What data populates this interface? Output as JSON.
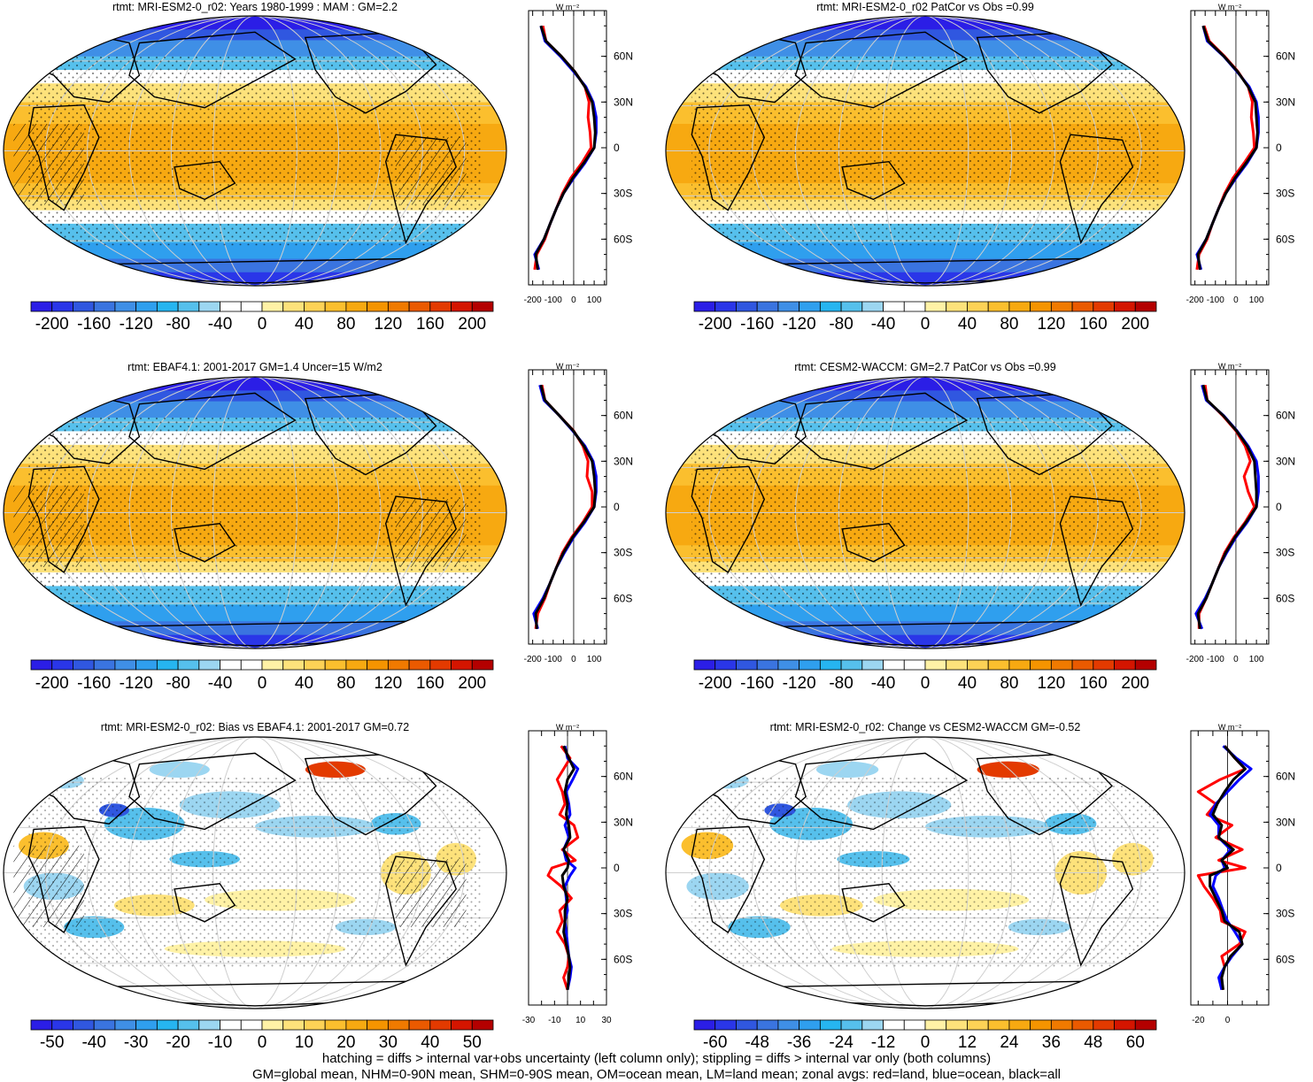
{
  "colors": {
    "land": "#ff0000",
    "ocean": "#0000ff",
    "all": "#000000",
    "palette": [
      "#2b1ee6",
      "#2a36e8",
      "#3057e0",
      "#3a74e0",
      "#3f8fe6",
      "#2f9fee",
      "#26b5f0",
      "#56c0ec",
      "#9cd6f1",
      "#ffffff",
      "#ffffff",
      "#fff2a6",
      "#fde27b",
      "#fdd256",
      "#fbbf2e",
      "#f7a911",
      "#f59400",
      "#f07a00",
      "#ea5a00",
      "#e33a00",
      "#d41500",
      "#b40000"
    ]
  },
  "panels": [
    {
      "id": "p1",
      "title": "rtmt: MRI-ESM2-0_r02: Years 1980-1999 : MAM : GM=2.2",
      "colorbar_labels": [
        "-200",
        "-160",
        "-120",
        "-80",
        "-40",
        "0",
        "40",
        "80",
        "120",
        "160",
        "200"
      ],
      "zonal_unit": "W m⁻²",
      "zonal_xticks": [
        "-200",
        "-100",
        "0",
        "100"
      ],
      "zonal_yticks": [
        "60N",
        "30N",
        "0",
        "30S",
        "60S"
      ],
      "map": {
        "kind": "mean",
        "hatch": true
      },
      "chart_data": {
        "type": "line",
        "xlabel": "W m-2",
        "x_range": [
          -220,
          160
        ],
        "y": [
          80,
          70,
          60,
          50,
          40,
          30,
          20,
          10,
          0,
          -10,
          -20,
          -30,
          -40,
          -50,
          -60,
          -70,
          -80
        ],
        "series": [
          {
            "values": [
              -150,
              -135,
              -60,
              5,
              55,
              75,
              70,
              80,
              85,
              40,
              -15,
              -55,
              -85,
              -115,
              -140,
              -180,
              -190
            ]
          },
          {
            "values": [
              -160,
              -140,
              -65,
              0,
              60,
              95,
              110,
              110,
              100,
              55,
              0,
              -50,
              -85,
              -115,
              -145,
              -190,
              -170
            ]
          },
          {
            "values": [
              -160,
              -135,
              -60,
              5,
              55,
              90,
              100,
              105,
              100,
              50,
              -5,
              -50,
              -85,
              -115,
              -145,
              -185,
              -175
            ]
          }
        ]
      }
    },
    {
      "id": "p2",
      "title": "rtmt: MRI-ESM2-0_r02 PatCor vs Obs =0.99",
      "colorbar_labels": [
        "-200",
        "-160",
        "-120",
        "-80",
        "-40",
        "0",
        "40",
        "80",
        "120",
        "160",
        "200"
      ],
      "zonal_unit": "W m⁻²",
      "zonal_xticks": [
        "-200",
        "-100",
        "0",
        "100"
      ],
      "zonal_yticks": [
        "60N",
        "30N",
        "0",
        "30S",
        "60S"
      ],
      "map": {
        "kind": "mean",
        "hatch": false
      },
      "chart_data": {
        "type": "line",
        "xlabel": "W m-2",
        "x_range": [
          -220,
          160
        ],
        "y": [
          80,
          70,
          60,
          50,
          40,
          30,
          20,
          10,
          0,
          -10,
          -20,
          -30,
          -40,
          -50,
          -60,
          -70,
          -80
        ],
        "series": [
          {
            "values": [
              -155,
              -130,
              -55,
              10,
              60,
              80,
              75,
              85,
              90,
              40,
              -15,
              -55,
              -85,
              -115,
              -140,
              -180,
              -190
            ]
          },
          {
            "values": [
              -160,
              -140,
              -60,
              5,
              65,
              100,
              110,
              110,
              100,
              55,
              0,
              -50,
              -85,
              -115,
              -145,
              -190,
              -170
            ]
          },
          {
            "values": [
              -160,
              -135,
              -58,
              8,
              60,
              95,
              100,
              105,
              100,
              50,
              -5,
              -50,
              -85,
              -115,
              -145,
              -185,
              -175
            ]
          }
        ]
      }
    },
    {
      "id": "p3",
      "title": "rtmt: EBAF4.1: 2001-2017 GM=1.4 Uncer=15 W/m2",
      "colorbar_labels": [
        "-200",
        "-160",
        "-120",
        "-80",
        "-40",
        "0",
        "40",
        "80",
        "120",
        "160",
        "200"
      ],
      "zonal_unit": "W m⁻²",
      "zonal_xticks": [
        "-200",
        "-100",
        "0",
        "100"
      ],
      "zonal_yticks": [
        "60N",
        "30N",
        "0",
        "30S",
        "60S"
      ],
      "map": {
        "kind": "mean",
        "hatch": true
      },
      "chart_data": {
        "type": "line",
        "xlabel": "W m-2",
        "x_range": [
          -220,
          160
        ],
        "y": [
          80,
          70,
          60,
          50,
          40,
          30,
          20,
          10,
          0,
          -10,
          -20,
          -30,
          -40,
          -50,
          -60,
          -70,
          -80
        ],
        "series": [
          {
            "values": [
              -155,
              -140,
              -70,
              0,
              45,
              70,
              65,
              90,
              90,
              45,
              -10,
              -55,
              -85,
              -115,
              -140,
              -175,
              -185
            ]
          },
          {
            "values": [
              -165,
              -145,
              -70,
              -5,
              55,
              95,
              110,
              110,
              100,
              55,
              0,
              -45,
              -85,
              -115,
              -150,
              -195,
              -175
            ]
          },
          {
            "values": [
              -160,
              -140,
              -70,
              -2,
              50,
              90,
              100,
              105,
              100,
              50,
              -5,
              -50,
              -85,
              -115,
              -145,
              -185,
              -180
            ]
          }
        ]
      }
    },
    {
      "id": "p4",
      "title": "rtmt: CESM2-WACCM: GM=2.7 PatCor vs Obs =0.99",
      "colorbar_labels": [
        "-200",
        "-160",
        "-120",
        "-80",
        "-40",
        "0",
        "40",
        "80",
        "120",
        "160",
        "200"
      ],
      "zonal_unit": "W m⁻²",
      "zonal_xticks": [
        "-200",
        "-100",
        "0",
        "100"
      ],
      "zonal_yticks": [
        "60N",
        "30N",
        "0",
        "30S",
        "60S"
      ],
      "map": {
        "kind": "mean",
        "hatch": false
      },
      "chart_data": {
        "type": "line",
        "xlabel": "W m-2",
        "x_range": [
          -220,
          160
        ],
        "y": [
          80,
          70,
          60,
          50,
          40,
          30,
          20,
          10,
          0,
          -10,
          -20,
          -30,
          -40,
          -50,
          -60,
          -70,
          -80
        ],
        "series": [
          {
            "values": [
              -150,
              -140,
              -65,
              0,
              45,
              70,
              40,
              60,
              90,
              45,
              -10,
              -55,
              -85,
              -115,
              -145,
              -180,
              -180
            ]
          },
          {
            "values": [
              -165,
              -145,
              -60,
              5,
              60,
              100,
              110,
              110,
              100,
              55,
              0,
              -45,
              -85,
              -115,
              -150,
              -195,
              -165
            ]
          },
          {
            "values": [
              -160,
              -140,
              -62,
              3,
              55,
              90,
              95,
              100,
              100,
              50,
              -5,
              -50,
              -85,
              -115,
              -145,
              -185,
              -175
            ]
          }
        ]
      }
    },
    {
      "id": "p5",
      "title": "rtmt: MRI-ESM2-0_r02: Bias vs EBAF4.1: 2001-2017 GM=0.72",
      "colorbar_labels": [
        "-50",
        "-40",
        "-30",
        "-20",
        "-10",
        "0",
        "10",
        "20",
        "30",
        "40",
        "50"
      ],
      "zonal_unit": "W m⁻²",
      "zonal_xticks": [
        "-30",
        "-10",
        "10",
        "30"
      ],
      "zonal_yticks": [
        "60N",
        "30N",
        "0",
        "30S",
        "60S"
      ],
      "map": {
        "kind": "diff",
        "hatch": true
      },
      "chart_data": {
        "type": "line",
        "xlabel": "W m-2",
        "x_range": [
          -30,
          30
        ],
        "y": [
          80,
          72,
          65,
          58,
          50,
          42,
          35,
          28,
          20,
          12,
          5,
          0,
          -5,
          -12,
          -20,
          -28,
          -35,
          -42,
          -50,
          -58,
          -65,
          -72,
          -80
        ],
        "series": [
          {
            "values": [
              -5,
              2,
              -3,
              -8,
              -4,
              -2,
              -6,
              5,
              8,
              -4,
              6,
              -12,
              -15,
              -5,
              3,
              -6,
              -4,
              -8,
              -2,
              1,
              0,
              -3,
              0
            ]
          },
          {
            "values": [
              -2,
              0,
              8,
              4,
              -1,
              1,
              2,
              -2,
              1,
              -3,
              -1,
              6,
              2,
              -2,
              -1,
              0,
              -2,
              -1,
              0,
              1,
              3,
              2,
              0
            ]
          },
          {
            "values": [
              -3,
              1,
              5,
              0,
              -2,
              0,
              -1,
              1,
              2,
              -3,
              1,
              0,
              -4,
              -3,
              0,
              -2,
              -2,
              -3,
              -1,
              1,
              2,
              1,
              0
            ]
          }
        ]
      }
    },
    {
      "id": "p6",
      "title": "rtmt: MRI-ESM2-0_r02: Change vs CESM2-WACCM GM=-0.52",
      "colorbar_labels": [
        "-60",
        "-48",
        "-36",
        "-24",
        "-12",
        "0",
        "12",
        "24",
        "36",
        "48",
        "60"
      ],
      "zonal_unit": "W m⁻²",
      "zonal_xticks": [
        "-20",
        "0"
      ],
      "zonal_yticks": [
        "60N",
        "30N",
        "0",
        "30S",
        "60S"
      ],
      "map": {
        "kind": "diff",
        "hatch": false
      },
      "chart_data": {
        "type": "line",
        "xlabel": "W m-2",
        "x_range": [
          -25,
          28
        ],
        "y": [
          80,
          72,
          65,
          58,
          50,
          42,
          35,
          28,
          20,
          12,
          5,
          0,
          -5,
          -12,
          -20,
          -28,
          -35,
          -42,
          -50,
          -58,
          -65,
          -72,
          -80
        ],
        "series": [
          {
            "values": [
              -2,
              5,
              12,
              -5,
              -20,
              -8,
              -14,
              3,
              -8,
              10,
              -6,
              12,
              -20,
              -16,
              -10,
              -5,
              -4,
              12,
              8,
              -4,
              -2,
              -5,
              -3
            ]
          },
          {
            "values": [
              -3,
              6,
              16,
              8,
              0,
              -8,
              -12,
              -6,
              -6,
              2,
              -4,
              -2,
              -8,
              -10,
              -6,
              -3,
              0,
              5,
              10,
              3,
              -2,
              -6,
              -4
            ]
          },
          {
            "values": [
              -2,
              5,
              12,
              4,
              -2,
              -7,
              -10,
              -4,
              -6,
              4,
              -4,
              0,
              -12,
              -12,
              -8,
              -4,
              -2,
              8,
              10,
              2,
              -2,
              -4,
              -3
            ]
          }
        ]
      }
    }
  ],
  "footnotes": [
    "hatching = diffs > internal var+obs uncertainty (left column only); stippling = diffs > internal var only (both columns)",
    "GM=global mean, NHM=0-90N mean, SHM=0-90S mean, OM=ocean mean, LM=land mean; zonal avgs: red=land, blue=ocean, black=all"
  ]
}
